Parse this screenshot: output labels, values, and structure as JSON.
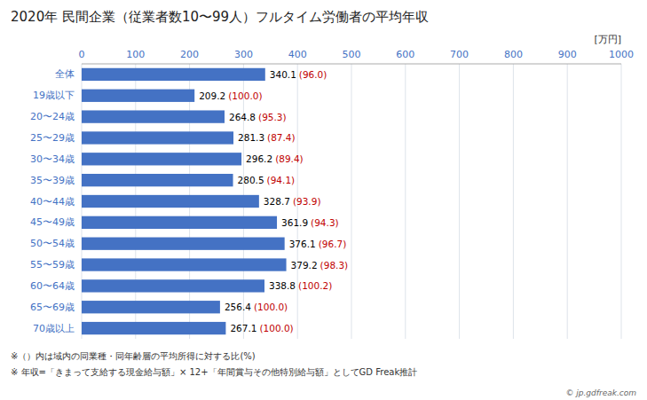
{
  "chart_data": {
    "type": "bar",
    "orientation": "horizontal",
    "title": "2020年 民間企業（従業者数10〜99人）フルタイム労働者の平均年収",
    "xlabel": "[万円]",
    "categories": [
      "全体",
      "19歳以下",
      "20〜24歳",
      "25〜29歳",
      "30〜34歳",
      "35〜39歳",
      "40〜44歳",
      "45〜49歳",
      "50〜54歳",
      "55〜59歳",
      "60〜64歳",
      "65〜69歳",
      "70歳以上"
    ],
    "values": [
      340.1,
      209.2,
      264.8,
      281.3,
      296.2,
      280.5,
      328.7,
      361.9,
      376.1,
      379.2,
      338.8,
      256.4,
      267.1
    ],
    "data_labels": true,
    "ratios": [
      96.0,
      100.0,
      95.3,
      87.4,
      89.4,
      94.1,
      93.9,
      94.3,
      96.7,
      98.3,
      100.2,
      100.0,
      100.0
    ],
    "ratio_labels": [
      "(96.0)",
      "(100.0)",
      "(95.3)",
      "(87.4)",
      "(89.4)",
      "(94.1)",
      "(93.9)",
      "(94.3)",
      "(96.7)",
      "(98.3)",
      "(100.2)",
      "(100.0)",
      "(100.0)"
    ],
    "color": "#4472c4",
    "ratio_color": "#c00000",
    "xlim": [
      0,
      1000
    ],
    "xticks": [
      0,
      100,
      200,
      300,
      400,
      500,
      600,
      700,
      800,
      900,
      1000
    ],
    "grid": true,
    "notes": [
      "※（）内は域内の同業種・同年齢層の平均所得に対する比(%)",
      "※ 年収=「きまって支給する現金給与額」× 12+「年間賞与その他特別給与額」としてGD Freak推計"
    ],
    "watermark": "© jp.gdfreak.com"
  }
}
